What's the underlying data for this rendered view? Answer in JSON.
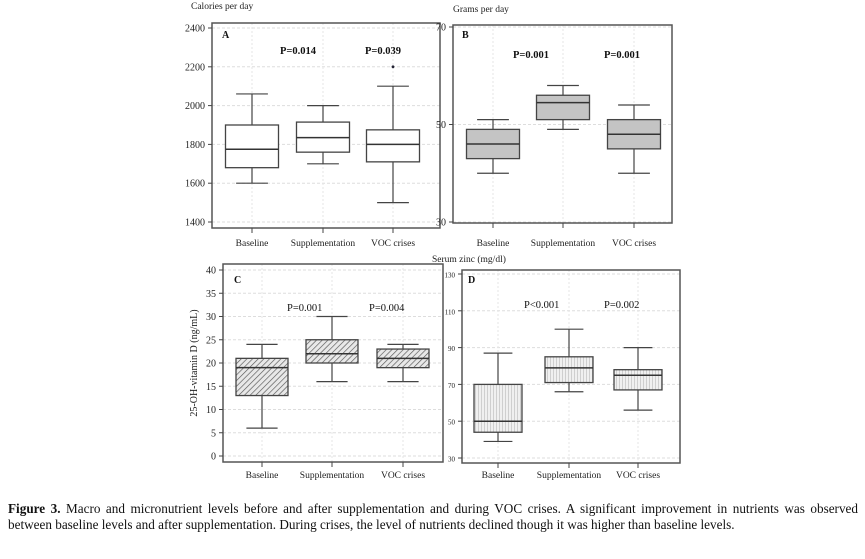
{
  "caption": {
    "label": "Figure 3.",
    "text": " Macro and micronutrient levels before and after supplementation and during VOC crises. A significant improvement in nutrients was observed between baseline levels and after supplementation. During crises, the level of nutrients declined though it was higher than baseline levels."
  },
  "chart_data": [
    {
      "type": "box",
      "panel": "A",
      "ylabel": "Calories per day",
      "categories": [
        "Baseline",
        "Supplementation",
        "VOC crises"
      ],
      "yticks": [
        1400,
        1600,
        1800,
        2000,
        2200,
        2400
      ],
      "ylim": [
        1400,
        2400
      ],
      "grid": true,
      "fill": "#ffffff",
      "pattern": "none",
      "annotations": [
        "P=0.014",
        "P=0.039"
      ],
      "boxes": [
        {
          "min": 1600,
          "q1": 1680,
          "median": 1775,
          "q3": 1900,
          "max": 2060
        },
        {
          "min": 1700,
          "q1": 1760,
          "median": 1835,
          "q3": 1915,
          "max": 2000
        },
        {
          "min": 1500,
          "q1": 1710,
          "median": 1800,
          "q3": 1875,
          "max": 2100,
          "outliers": [
            2200
          ]
        }
      ]
    },
    {
      "type": "box",
      "panel": "B",
      "ylabel": "Grams per day",
      "categories": [
        "Baseline",
        "Supplementation",
        "VOC crises"
      ],
      "yticks": [
        30,
        50,
        70
      ],
      "ylim": [
        30,
        70
      ],
      "grid": true,
      "fill": "#c4c4c4",
      "pattern": "none",
      "annotations": [
        "P=0.001",
        "P=0.001"
      ],
      "boxes": [
        {
          "min": 40,
          "q1": 43,
          "median": 46,
          "q3": 49,
          "max": 51
        },
        {
          "min": 49,
          "q1": 51,
          "median": 54.5,
          "q3": 56,
          "max": 58
        },
        {
          "min": 40,
          "q1": 45,
          "median": 48,
          "q3": 51,
          "max": 54
        }
      ]
    },
    {
      "type": "box",
      "panel": "C",
      "ylabel": "25-OH-vitamin D (ng/mL)",
      "categories": [
        "Baseline",
        "Supplementation",
        "VOC crises"
      ],
      "yticks": [
        0,
        5,
        10,
        15,
        20,
        25,
        30,
        35,
        40
      ],
      "ylim": [
        0,
        40
      ],
      "grid": true,
      "fill": "#e8e8e8",
      "pattern": "hatch",
      "annotations": [
        "P=0.001",
        "P=0.004"
      ],
      "boxes": [
        {
          "min": 6,
          "q1": 13,
          "median": 19,
          "q3": 21,
          "max": 24
        },
        {
          "min": 16,
          "q1": 20,
          "median": 22,
          "q3": 25,
          "max": 30
        },
        {
          "min": 16,
          "q1": 19,
          "median": 21,
          "q3": 23,
          "max": 24
        }
      ]
    },
    {
      "type": "box",
      "panel": "D",
      "ylabel": "Serum zinc (mg/dl)",
      "categories": [
        "Baseline",
        "Supplementation",
        "VOC crises"
      ],
      "yticks": [
        30,
        50,
        70,
        90,
        110,
        130
      ],
      "ylim": [
        30,
        130
      ],
      "grid": true,
      "fill": "#ececec",
      "pattern": "dots",
      "annotations": [
        "P<0.001",
        "P=0.002"
      ],
      "boxes": [
        {
          "min": 39,
          "q1": 44,
          "median": 50,
          "q3": 70,
          "max": 87
        },
        {
          "min": 66,
          "q1": 71,
          "median": 79,
          "q3": 85,
          "max": 100
        },
        {
          "min": 56,
          "q1": 67,
          "median": 75,
          "q3": 78,
          "max": 90
        }
      ]
    }
  ]
}
